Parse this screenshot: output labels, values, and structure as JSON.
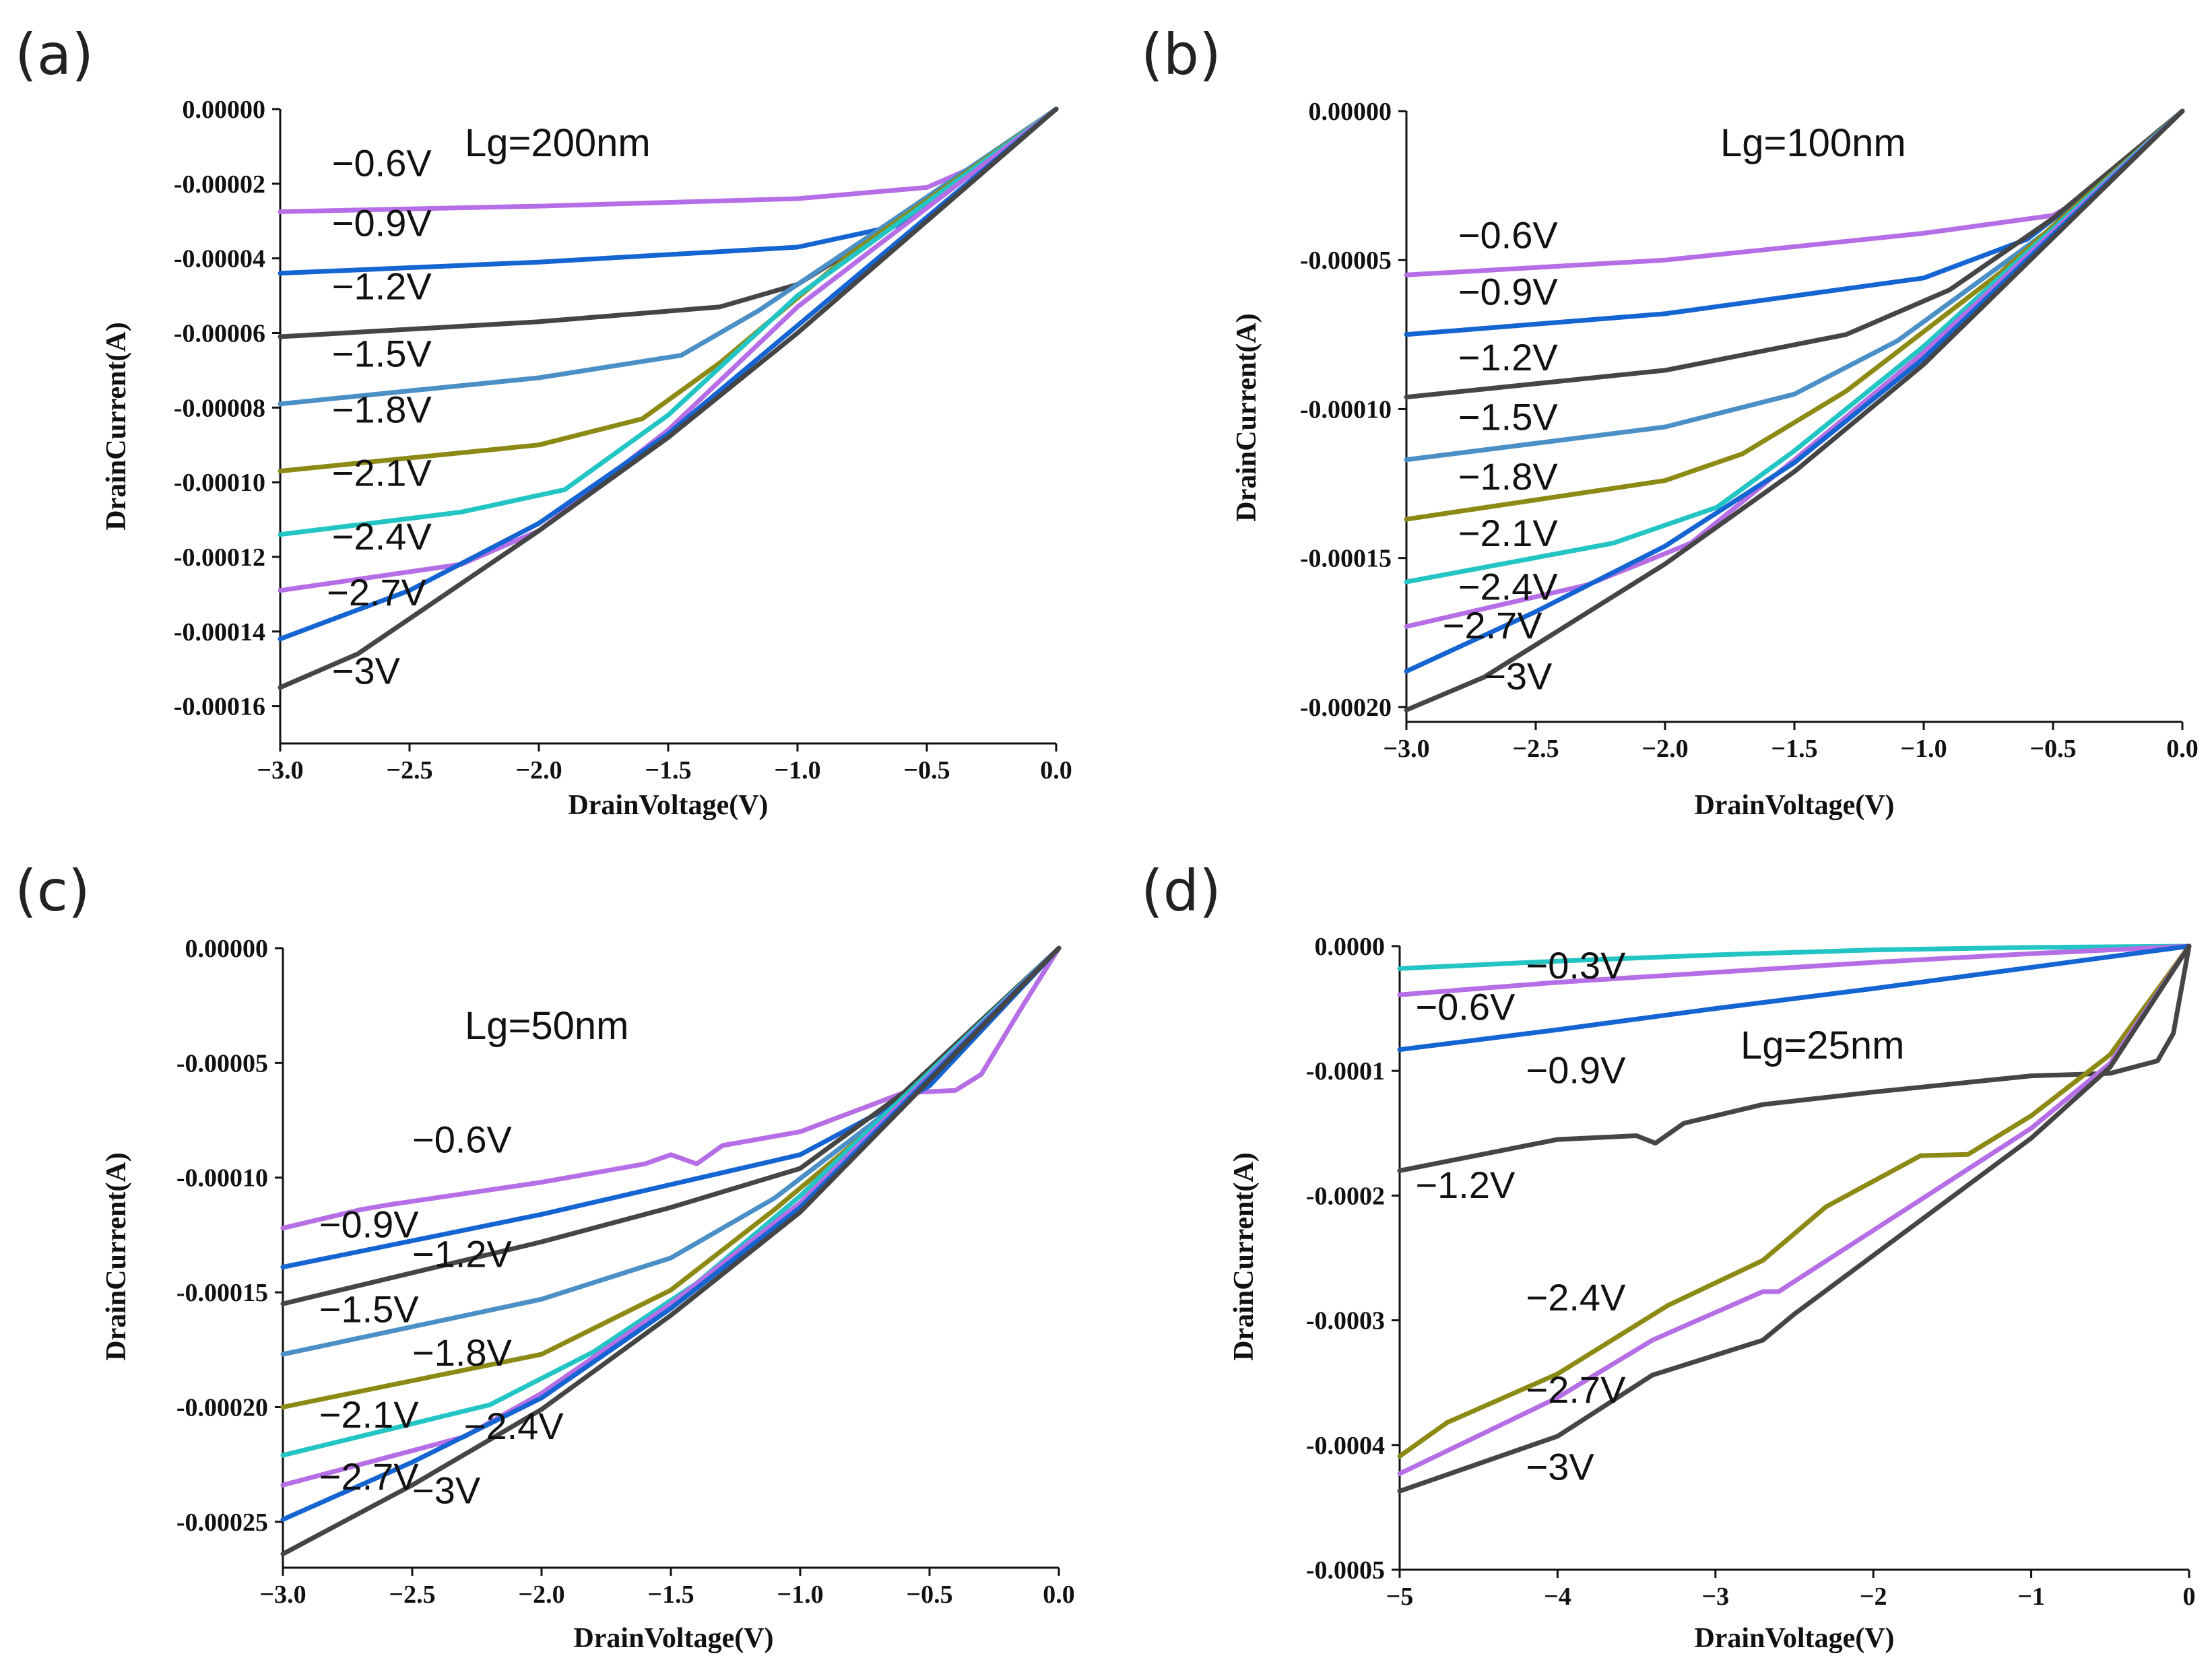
{
  "colors": {
    "violet": "#b56ee6",
    "blue": "#1464d2",
    "charcoal": "#454545",
    "steelblue": "#4a8fc6",
    "olive": "#8c8a14",
    "cyan": "#22c4c4",
    "axis": "#111111"
  },
  "chart_data": [
    {
      "panel": "(a)",
      "type": "line",
      "title": "Lg=200nm",
      "xlabel": "DrainVoltage(V)",
      "ylabel": "DrainCurrent(A)",
      "xlim": [
        -3.0,
        0.0
      ],
      "ylim": [
        -0.00017,
        0.0
      ],
      "xticks": [
        -3.0,
        -2.5,
        -2.0,
        -1.5,
        -1.0,
        -0.5,
        0.0
      ],
      "xtick_labels": [
        "−3.0",
        "−2.5",
        "−2.0",
        "−1.5",
        "−1.0",
        "−0.5",
        "0.0"
      ],
      "yticks": [
        0.0,
        -2e-05,
        -4e-05,
        -6e-05,
        -8e-05,
        -0.0001,
        -0.00012,
        -0.00014,
        -0.00016
      ],
      "ytick_labels": [
        "0.00000",
        "-0.00002",
        "-0.00004",
        "-0.00006",
        "-0.00008",
        "-0.00010",
        "-0.00012",
        "-0.00014",
        "-0.00016"
      ],
      "series": [
        {
          "name": "−0.6V",
          "color": "violet",
          "label_at": [
            -2.8,
            -1.8e-05
          ],
          "x": [
            -3.0,
            -2.0,
            -1.0,
            -0.5,
            -0.3,
            0.0
          ],
          "y": [
            -2.75e-05,
            -2.6e-05,
            -2.4e-05,
            -2.1e-05,
            -1.5e-05,
            0.0
          ]
        },
        {
          "name": "−0.9V",
          "color": "blue",
          "label_at": [
            -2.8,
            -3.4e-05
          ],
          "x": [
            -3.0,
            -2.0,
            -1.0,
            -0.6,
            -0.4,
            0.0
          ],
          "y": [
            -4.4e-05,
            -4.1e-05,
            -3.7e-05,
            -3.1e-05,
            -2.1e-05,
            0.0
          ]
        },
        {
          "name": "−1.2V",
          "color": "charcoal",
          "label_at": [
            -2.8,
            -5.1e-05
          ],
          "x": [
            -3.0,
            -2.0,
            -1.3,
            -1.0,
            -0.7,
            -0.4,
            0.0
          ],
          "y": [
            -6.1e-05,
            -5.7e-05,
            -5.3e-05,
            -4.7e-05,
            -3.4e-05,
            -1.9e-05,
            0.0
          ]
        },
        {
          "name": "−1.5V",
          "color": "steelblue",
          "label_at": [
            -2.8,
            -6.9e-05
          ],
          "x": [
            -3.0,
            -2.0,
            -1.45,
            -1.15,
            -0.7,
            0.0
          ],
          "y": [
            -7.9e-05,
            -7.2e-05,
            -6.6e-05,
            -5.4e-05,
            -3.3e-05,
            0.0
          ]
        },
        {
          "name": "−1.8V",
          "color": "olive",
          "label_at": [
            -2.8,
            -8.4e-05
          ],
          "x": [
            -3.0,
            -2.0,
            -1.6,
            -1.3,
            -0.8,
            0.0
          ],
          "y": [
            -9.7e-05,
            -9e-05,
            -8.3e-05,
            -6.8e-05,
            -3.9e-05,
            0.0
          ]
        },
        {
          "name": "−2.1V",
          "color": "cyan",
          "label_at": [
            -2.8,
            -0.000101
          ],
          "x": [
            -3.0,
            -2.3,
            -1.9,
            -1.5,
            -1.0,
            0.0
          ],
          "y": [
            -0.000114,
            -0.000108,
            -0.000102,
            -8.2e-05,
            -5e-05,
            0.0
          ]
        },
        {
          "name": "−2.4V",
          "color": "violet",
          "label_at": [
            -2.8,
            -0.000118
          ],
          "x": [
            -3.0,
            -2.3,
            -2.0,
            -1.5,
            -1.0,
            0.0
          ],
          "y": [
            -0.000129,
            -0.000122,
            -0.000113,
            -8.6e-05,
            -5.3e-05,
            0.0
          ]
        },
        {
          "name": "−2.7V",
          "color": "blue",
          "label_at": [
            -2.82,
            -0.000133
          ],
          "x": [
            -3.0,
            -2.5,
            -2.0,
            -1.5,
            -1.0,
            0.0
          ],
          "y": [
            -0.000142,
            -0.000129,
            -0.000111,
            -8.7e-05,
            -5.8e-05,
            0.0
          ]
        },
        {
          "name": "−3V",
          "color": "charcoal",
          "label_at": [
            -2.8,
            -0.000154
          ],
          "x": [
            -3.0,
            -2.7,
            -2.0,
            -1.5,
            -1.0,
            0.0
          ],
          "y": [
            -0.000155,
            -0.000146,
            -0.000113,
            -8.8e-05,
            -6e-05,
            0.0
          ]
        }
      ]
    },
    {
      "panel": "(b)",
      "type": "line",
      "title": "Lg=100nm",
      "xlabel": "DrainVoltage(V)",
      "ylabel": "DrainCurrent(A)",
      "xlim": [
        -3.0,
        0.0
      ],
      "ylim": [
        -0.000205,
        0.0
      ],
      "xticks": [
        -3.0,
        -2.5,
        -2.0,
        -1.5,
        -1.0,
        -0.5,
        0.0
      ],
      "xtick_labels": [
        "−3.0",
        "−2.5",
        "−2.0",
        "−1.5",
        "−1.0",
        "−0.5",
        "0.0"
      ],
      "yticks": [
        0.0,
        -5e-05,
        -0.0001,
        -0.00015,
        -0.0002
      ],
      "ytick_labels": [
        "0.00000",
        "-0.00005",
        "-0.00010",
        "-0.00015",
        "-0.00020"
      ],
      "series": [
        {
          "name": "−0.6V",
          "color": "violet",
          "label_at": [
            -2.8,
            -4.6e-05
          ],
          "x": [
            -3.0,
            -2.0,
            -1.0,
            -0.5,
            -0.3,
            0.0
          ],
          "y": [
            -5.5e-05,
            -5e-05,
            -4.1e-05,
            -3.5e-05,
            -2.5e-05,
            0.0
          ]
        },
        {
          "name": "−0.9V",
          "color": "blue",
          "label_at": [
            -2.8,
            -6.5e-05
          ],
          "x": [
            -3.0,
            -2.0,
            -1.0,
            -0.6,
            -0.3,
            0.0
          ],
          "y": [
            -7.5e-05,
            -6.8e-05,
            -5.6e-05,
            -4.3e-05,
            -2.3e-05,
            0.0
          ]
        },
        {
          "name": "−1.2V",
          "color": "charcoal",
          "label_at": [
            -2.8,
            -8.7e-05
          ],
          "x": [
            -3.0,
            -2.0,
            -1.3,
            -0.9,
            -0.5,
            0.0
          ],
          "y": [
            -9.6e-05,
            -8.7e-05,
            -7.5e-05,
            -6e-05,
            -3.6e-05,
            0.0
          ]
        },
        {
          "name": "−1.5V",
          "color": "steelblue",
          "label_at": [
            -2.8,
            -0.000107
          ],
          "x": [
            -3.0,
            -2.0,
            -1.5,
            -1.1,
            -0.5,
            0.0
          ],
          "y": [
            -0.000117,
            -0.000106,
            -9.5e-05,
            -7.7e-05,
            -3.9e-05,
            0.0
          ]
        },
        {
          "name": "−1.8V",
          "color": "olive",
          "label_at": [
            -2.8,
            -0.000127
          ],
          "x": [
            -3.0,
            -2.0,
            -1.7,
            -1.3,
            -0.7,
            0.0
          ],
          "y": [
            -0.000137,
            -0.000124,
            -0.000115,
            -9.4e-05,
            -5.4e-05,
            0.0
          ]
        },
        {
          "name": "−2.1V",
          "color": "cyan",
          "label_at": [
            -2.8,
            -0.000146
          ],
          "x": [
            -3.0,
            -2.2,
            -1.8,
            -1.5,
            -1.0,
            0.0
          ],
          "y": [
            -0.000158,
            -0.000145,
            -0.000133,
            -0.000114,
            -7.9e-05,
            0.0
          ]
        },
        {
          "name": "−2.4V",
          "color": "violet",
          "label_at": [
            -2.8,
            -0.000164
          ],
          "x": [
            -3.0,
            -2.3,
            -1.9,
            -1.5,
            -1.0,
            0.0
          ],
          "y": [
            -0.000173,
            -0.000159,
            -0.000145,
            -0.000117,
            -8.1e-05,
            0.0
          ]
        },
        {
          "name": "−2.7V",
          "color": "blue",
          "label_at": [
            -2.86,
            -0.000177
          ],
          "x": [
            -3.0,
            -2.5,
            -2.0,
            -1.5,
            -1.0,
            0.0
          ],
          "y": [
            -0.000188,
            -0.000168,
            -0.000146,
            -0.000118,
            -8.3e-05,
            0.0
          ]
        },
        {
          "name": "−3V",
          "color": "charcoal",
          "label_at": [
            -2.7,
            -0.000194
          ],
          "x": [
            -3.0,
            -2.7,
            -2.0,
            -1.5,
            -1.0,
            0.0
          ],
          "y": [
            -0.000201,
            -0.00019,
            -0.000152,
            -0.000121,
            -8.5e-05,
            0.0
          ]
        }
      ]
    },
    {
      "panel": "(c)",
      "type": "line",
      "title": "Lg=50nm",
      "xlabel": "DrainVoltage(V)",
      "ylabel": "DrainCurrent(A)",
      "xlim": [
        -3.0,
        0.0
      ],
      "ylim": [
        -0.00027,
        0.0
      ],
      "xticks": [
        -3.0,
        -2.5,
        -2.0,
        -1.5,
        -1.0,
        -0.5,
        0.0
      ],
      "xtick_labels": [
        "−3.0",
        "−2.5",
        "−2.0",
        "−1.5",
        "−1.0",
        "−0.5",
        "0.0"
      ],
      "yticks": [
        0.0,
        -5e-05,
        -0.0001,
        -0.00015,
        -0.0002,
        -0.00025
      ],
      "ytick_labels": [
        "0.00000",
        "-0.00005",
        "-0.00010",
        "-0.00015",
        "-0.00020",
        "-0.00025"
      ],
      "series": [
        {
          "name": "−0.6V",
          "color": "violet",
          "label_at": [
            -2.5,
            -8.9e-05
          ],
          "x": [
            -3.0,
            -2.7,
            -2.6,
            -2.0,
            -1.6,
            -1.5,
            -1.4,
            -1.3,
            -1.0,
            -0.6,
            -0.4,
            -0.3,
            -0.15,
            0.0
          ],
          "y": [
            -0.000122,
            -0.000114,
            -0.000112,
            -0.000102,
            -9.4e-05,
            -9e-05,
            -9.4e-05,
            -8.6e-05,
            -8e-05,
            -6.3e-05,
            -6.2e-05,
            -5.5e-05,
            -2.7e-05,
            0.0
          ]
        },
        {
          "name": "−0.9V",
          "color": "blue",
          "label_at": [
            -2.86,
            -0.000126
          ],
          "x": [
            -3.0,
            -2.0,
            -1.5,
            -1.0,
            -0.5,
            0.0
          ],
          "y": [
            -0.000139,
            -0.000116,
            -0.000103,
            -9e-05,
            -6e-05,
            0.0
          ]
        },
        {
          "name": "−1.2V",
          "color": "charcoal",
          "label_at": [
            -2.5,
            -0.000139
          ],
          "x": [
            -3.0,
            -2.0,
            -1.5,
            -1.0,
            -0.6,
            0.0
          ],
          "y": [
            -0.000155,
            -0.000128,
            -0.000113,
            -9.6e-05,
            -6.3e-05,
            0.0
          ]
        },
        {
          "name": "−1.5V",
          "color": "steelblue",
          "label_at": [
            -2.86,
            -0.000163
          ],
          "x": [
            -3.0,
            -2.0,
            -1.5,
            -1.1,
            -0.6,
            0.0
          ],
          "y": [
            -0.000177,
            -0.000153,
            -0.000135,
            -0.000109,
            -6.6e-05,
            0.0
          ]
        },
        {
          "name": "−1.8V",
          "color": "olive",
          "label_at": [
            -2.5,
            -0.000182
          ],
          "x": [
            -3.0,
            -2.0,
            -1.5,
            -1.1,
            -0.6,
            0.0
          ],
          "y": [
            -0.0002,
            -0.000177,
            -0.000149,
            -0.000114,
            -6.7e-05,
            0.0
          ]
        },
        {
          "name": "−2.1V",
          "color": "cyan",
          "label_at": [
            -2.86,
            -0.000209
          ],
          "x": [
            -3.0,
            -2.2,
            -1.8,
            -1.4,
            -1.0,
            0.0
          ],
          "y": [
            -0.000221,
            -0.000199,
            -0.000176,
            -0.000146,
            -0.000108,
            0.0
          ]
        },
        {
          "name": "−2.4V",
          "color": "violet",
          "label_at": [
            -2.3,
            -0.000214
          ],
          "x": [
            -3.0,
            -2.3,
            -2.0,
            -1.5,
            -1.0,
            0.0
          ],
          "y": [
            -0.000234,
            -0.000213,
            -0.000194,
            -0.000155,
            -0.000111,
            0.0
          ]
        },
        {
          "name": "−2.7V",
          "color": "blue",
          "label_at": [
            -2.86,
            -0.000236
          ],
          "x": [
            -3.0,
            -2.5,
            -2.0,
            -1.5,
            -1.0,
            0.0
          ],
          "y": [
            -0.000249,
            -0.000224,
            -0.000196,
            -0.000157,
            -0.000113,
            0.0
          ]
        },
        {
          "name": "−3V",
          "color": "charcoal",
          "label_at": [
            -2.5,
            -0.000242
          ],
          "x": [
            -3.0,
            -2.5,
            -2.0,
            -1.5,
            -1.0,
            0.0
          ],
          "y": [
            -0.000264,
            -0.000234,
            -0.000201,
            -0.00016,
            -0.000115,
            0.0
          ]
        }
      ]
    },
    {
      "panel": "(d)",
      "type": "line",
      "title": "Lg=25nm",
      "xlabel": "DrainVoltage(V)",
      "ylabel": "DrainCurrent(A)",
      "xlim": [
        -5.0,
        0.0
      ],
      "ylim": [
        -0.0005,
        0.0
      ],
      "xticks": [
        -5,
        -4,
        -3,
        -2,
        -1,
        0
      ],
      "xtick_labels": [
        "−5",
        "−4",
        "−3",
        "−2",
        "−1",
        "0"
      ],
      "yticks": [
        0.0,
        -0.0001,
        -0.0002,
        -0.0003,
        -0.0004,
        -0.0005
      ],
      "ytick_labels": [
        "0.0000",
        "-0.0001",
        "-0.0002",
        "-0.0003",
        "-0.0004",
        "-0.0005"
      ],
      "series": [
        {
          "name": "−0.3V",
          "color": "cyan",
          "label_at": [
            -4.2,
            -2.6e-05
          ],
          "x": [
            -5.0,
            -4.0,
            -3.0,
            -2.0,
            -1.0,
            0.0
          ],
          "y": [
            -1.8e-05,
            -1.2e-05,
            -7e-06,
            -3e-06,
            -1e-06,
            0.0
          ]
        },
        {
          "name": "−0.6V",
          "color": "violet",
          "label_at": [
            -4.9,
            -5.9e-05
          ],
          "x": [
            -5.0,
            -4.0,
            -3.0,
            -2.0,
            -1.0,
            0.0
          ],
          "y": [
            -3.9e-05,
            -2.9e-05,
            -2.1e-05,
            -1.3e-05,
            -6e-06,
            0.0
          ]
        },
        {
          "name": "−0.9V",
          "color": "blue",
          "label_at": [
            -4.2,
            -0.00011
          ],
          "x": [
            -5.0,
            -4.0,
            -3.0,
            -2.0,
            -1.0,
            0.0
          ],
          "y": [
            -8.3e-05,
            -6.7e-05,
            -5e-05,
            -3.4e-05,
            -1.7e-05,
            0.0
          ]
        },
        {
          "name": "−1.2V",
          "color": "charcoal",
          "label_at": [
            -4.9,
            -0.000202
          ],
          "x": [
            -5.0,
            -4.0,
            -3.5,
            -3.38,
            -3.2,
            -2.7,
            -2.0,
            -1.0,
            -0.5,
            -0.2,
            -0.1,
            0.0
          ],
          "y": [
            -0.00018,
            -0.000155,
            -0.000152,
            -0.000158,
            -0.000142,
            -0.000127,
            -0.000117,
            -0.000104,
            -0.000102,
            -9.2e-05,
            -7e-05,
            0.0
          ]
        },
        {
          "name": "−2.4V",
          "color": "olive",
          "label_at": [
            -4.2,
            -0.000292
          ],
          "x": [
            -5.0,
            -4.7,
            -4.0,
            -3.3,
            -2.7,
            -2.3,
            -1.7,
            -1.4,
            -1.0,
            -0.5,
            0.0
          ],
          "y": [
            -0.000409,
            -0.000382,
            -0.000343,
            -0.000288,
            -0.000252,
            -0.000209,
            -0.000168,
            -0.000167,
            -0.000136,
            -8.7e-05,
            0.0
          ]
        },
        {
          "name": "−2.7V",
          "color": "violet",
          "label_at": [
            -4.2,
            -0.000366
          ],
          "x": [
            -5.0,
            -4.0,
            -3.4,
            -2.7,
            -2.6,
            -1.0,
            -0.5,
            0.0
          ],
          "y": [
            -0.000423,
            -0.000362,
            -0.000316,
            -0.000277,
            -0.000277,
            -0.000146,
            -9.4e-05,
            0.0
          ]
        },
        {
          "name": "−3V",
          "color": "charcoal",
          "label_at": [
            -4.2,
            -0.000428
          ],
          "x": [
            -5.0,
            -4.0,
            -3.4,
            -2.7,
            -2.5,
            -1.0,
            -0.5,
            0.0
          ],
          "y": [
            -0.000437,
            -0.000393,
            -0.000344,
            -0.000316,
            -0.000295,
            -0.000154,
            -9.7e-05,
            0.0
          ]
        }
      ]
    }
  ]
}
